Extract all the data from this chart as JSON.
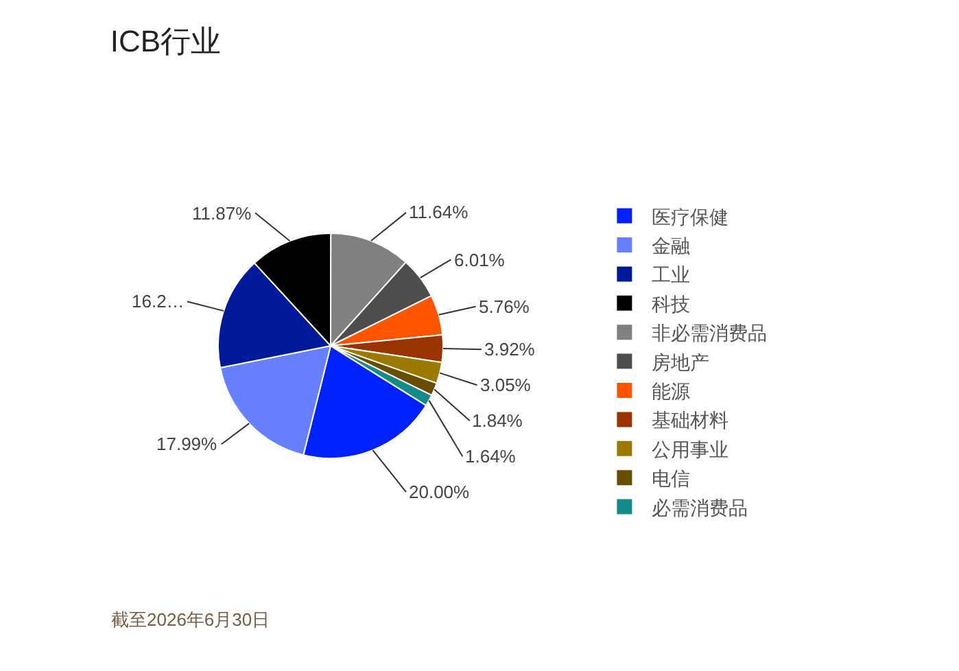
{
  "chart_data": {
    "type": "pie",
    "title": "ICB行业",
    "categories": [
      "医疗保健",
      "金融",
      "工业",
      "科技",
      "非必需消费品",
      "房地产",
      "能源",
      "基础材料",
      "公用事业",
      "电信",
      "必需消费品"
    ],
    "values": [
      20.0,
      17.99,
      16.28,
      11.87,
      11.64,
      6.01,
      5.76,
      3.92,
      3.05,
      1.84,
      1.64
    ],
    "value_labels": [
      "20.00%",
      "17.99%",
      "16.2…",
      "11.87%",
      "11.64%",
      "6.01%",
      "5.76%",
      "3.92%",
      "3.05%",
      "1.84%",
      "1.64%"
    ],
    "colors": [
      "#0022ff",
      "#6680ff",
      "#001a99",
      "#000000",
      "#808080",
      "#4d4d4d",
      "#ff5500",
      "#993300",
      "#9c7a00",
      "#664d00",
      "#158a8a"
    ],
    "legend": "right",
    "annotations": [
      "截至2026年6月30日"
    ]
  }
}
